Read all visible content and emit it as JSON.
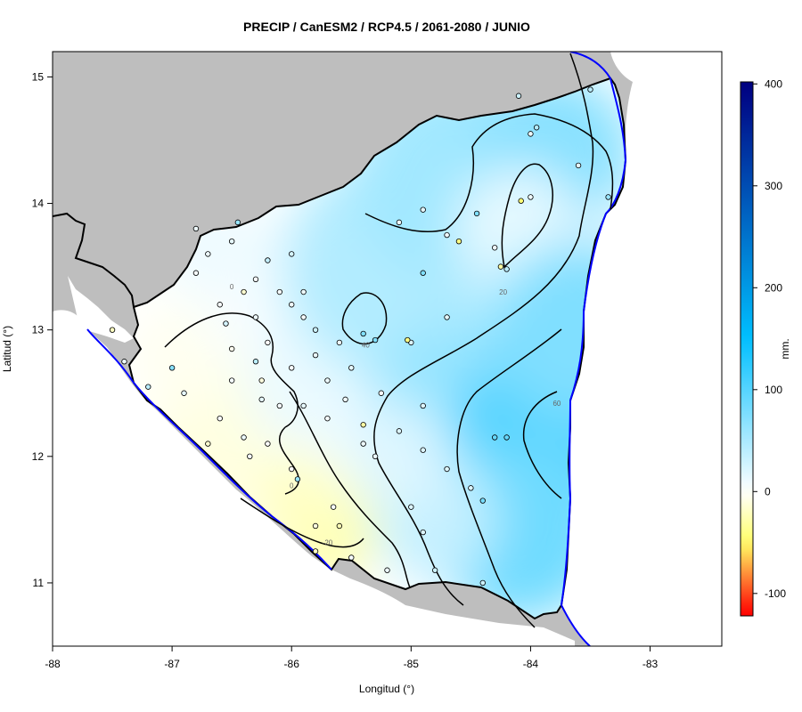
{
  "title": "PRECIP / CanESM2 / RCP4.5 / 2061-2080 / JUNIO",
  "x_axis": {
    "label": "Longitud (°)",
    "range": [
      -88,
      -82.4
    ],
    "ticks": [
      "-88",
      "-87",
      "-86",
      "-85",
      "-84",
      "-83"
    ],
    "tick_values": [
      -88,
      -87,
      -86,
      -85,
      -84,
      -83
    ]
  },
  "y_axis": {
    "label": "Latitud (°)",
    "range": [
      10.5,
      15.2
    ],
    "ticks": [
      "11",
      "12",
      "13",
      "14",
      "15"
    ],
    "tick_values": [
      11,
      12,
      13,
      14,
      15
    ]
  },
  "colorbar": {
    "label": "mm.",
    "ticks": [
      "400",
      "300",
      "200",
      "100",
      "0",
      "-100"
    ],
    "tick_values": [
      400,
      300,
      200,
      100,
      0,
      -100
    ],
    "range": [
      -122,
      402
    ],
    "colors": {
      "min": "#ff0000",
      "neg": "#ffff66",
      "zero": "#ffffff",
      "pos": "#00bfff",
      "max": "#000080"
    }
  },
  "contour_labels": [
    {
      "text": "20",
      "lon": -84.23,
      "lat": 13.28
    },
    {
      "text": "40",
      "lon": -85.38,
      "lat": 12.86
    },
    {
      "text": "60",
      "lon": -83.78,
      "lat": 12.4
    },
    {
      "text": "0",
      "lon": -86.5,
      "lat": 13.32
    },
    {
      "text": "0",
      "lon": -86.0,
      "lat": 11.75
    },
    {
      "text": "-20",
      "lon": -85.7,
      "lat": 11.3
    }
  ],
  "stations": [
    {
      "lon": -86.8,
      "lat": 13.8,
      "value": 10
    },
    {
      "lon": -86.5,
      "lat": 13.7,
      "value": 15
    },
    {
      "lon": -86.2,
      "lat": 13.55,
      "value": 35
    },
    {
      "lon": -86.0,
      "lat": 13.6,
      "value": 25
    },
    {
      "lon": -86.4,
      "lat": 13.3,
      "value": -15
    },
    {
      "lon": -86.6,
      "lat": 13.2,
      "value": 5
    },
    {
      "lon": -86.3,
      "lat": 13.1,
      "value": 10
    },
    {
      "lon": -86.0,
      "lat": 13.2,
      "value": 8
    },
    {
      "lon": -85.8,
      "lat": 13.0,
      "value": 30
    },
    {
      "lon": -86.2,
      "lat": 12.9,
      "value": 0
    },
    {
      "lon": -86.5,
      "lat": 12.85,
      "value": -5
    },
    {
      "lon": -86.3,
      "lat": 12.75,
      "value": 40
    },
    {
      "lon": -86.0,
      "lat": 12.7,
      "value": 5
    },
    {
      "lon": -85.7,
      "lat": 12.6,
      "value": 10
    },
    {
      "lon": -86.9,
      "lat": 12.5,
      "value": 15
    },
    {
      "lon": -87.2,
      "lat": 12.55,
      "value": 40
    },
    {
      "lon": -87.5,
      "lat": 13.0,
      "value": -20
    },
    {
      "lon": -87.4,
      "lat": 12.75,
      "value": 10
    },
    {
      "lon": -86.6,
      "lat": 12.3,
      "value": 2
    },
    {
      "lon": -86.7,
      "lat": 12.1,
      "value": -15
    },
    {
      "lon": -86.2,
      "lat": 12.1,
      "value": 0
    },
    {
      "lon": -86.0,
      "lat": 11.9,
      "value": 0
    },
    {
      "lon": -85.95,
      "lat": 11.82,
      "value": 60
    },
    {
      "lon": -85.8,
      "lat": 11.45,
      "value": -10
    },
    {
      "lon": -85.6,
      "lat": 11.45,
      "value": -25
    },
    {
      "lon": -85.65,
      "lat": 11.6,
      "value": 5
    },
    {
      "lon": -85.8,
      "lat": 11.25,
      "value": -20
    },
    {
      "lon": -85.5,
      "lat": 11.2,
      "value": 5
    },
    {
      "lon": -85.2,
      "lat": 11.1,
      "value": 10
    },
    {
      "lon": -85.4,
      "lat": 12.1,
      "value": 10
    },
    {
      "lon": -85.25,
      "lat": 12.5,
      "value": 5
    },
    {
      "lon": -85.1,
      "lat": 12.2,
      "value": 20
    },
    {
      "lon": -84.9,
      "lat": 12.05,
      "value": 20
    },
    {
      "lon": -84.7,
      "lat": 11.9,
      "value": 20
    },
    {
      "lon": -84.5,
      "lat": 11.75,
      "value": 20
    },
    {
      "lon": -84.4,
      "lat": 11.65,
      "value": 80
    },
    {
      "lon": -84.3,
      "lat": 12.15,
      "value": 90
    },
    {
      "lon": -84.2,
      "lat": 12.15,
      "value": 90
    },
    {
      "lon": -84.8,
      "lat": 11.1,
      "value": 30
    },
    {
      "lon": -84.4,
      "lat": 11.0,
      "value": 30
    },
    {
      "lon": -84.9,
      "lat": 11.4,
      "value": 20
    },
    {
      "lon": -85.0,
      "lat": 11.6,
      "value": 20
    },
    {
      "lon": -84.9,
      "lat": 12.4,
      "value": 20
    },
    {
      "lon": -85.0,
      "lat": 12.9,
      "value": 20
    },
    {
      "lon": -85.3,
      "lat": 12.92,
      "value": 75
    },
    {
      "lon": -85.4,
      "lat": 12.97,
      "value": 75
    },
    {
      "lon": -85.03,
      "lat": 12.92,
      "value": -40
    },
    {
      "lon": -85.4,
      "lat": 12.25,
      "value": -30
    },
    {
      "lon": -84.7,
      "lat": 13.1,
      "value": 15
    },
    {
      "lon": -84.9,
      "lat": 13.45,
      "value": 75
    },
    {
      "lon": -84.6,
      "lat": 13.7,
      "value": -40
    },
    {
      "lon": -84.7,
      "lat": 13.75,
      "value": 10
    },
    {
      "lon": -84.45,
      "lat": 13.92,
      "value": 75
    },
    {
      "lon": -84.3,
      "lat": 13.65,
      "value": 10
    },
    {
      "lon": -84.25,
      "lat": 13.5,
      "value": -30
    },
    {
      "lon": -84.2,
      "lat": 13.48,
      "value": 40
    },
    {
      "lon": -84.0,
      "lat": 14.05,
      "value": 8
    },
    {
      "lon": -84.08,
      "lat": 14.02,
      "value": -45
    },
    {
      "lon": -84.0,
      "lat": 14.55,
      "value": 10
    },
    {
      "lon": -83.95,
      "lat": 14.6,
      "value": 45
    },
    {
      "lon": -83.6,
      "lat": 14.3,
      "value": 15
    },
    {
      "lon": -83.35,
      "lat": 14.05,
      "value": 60
    },
    {
      "lon": -84.1,
      "lat": 14.85,
      "value": 30
    },
    {
      "lon": -83.5,
      "lat": 14.9,
      "value": 40
    },
    {
      "lon": -84.9,
      "lat": 13.95,
      "value": 15
    },
    {
      "lon": -85.1,
      "lat": 13.85,
      "value": 10
    },
    {
      "lon": -86.45,
      "lat": 13.85,
      "value": 60
    },
    {
      "lon": -86.8,
      "lat": 13.45,
      "value": 5
    },
    {
      "lon": -86.7,
      "lat": 13.6,
      "value": 10
    },
    {
      "lon": -87.0,
      "lat": 12.7,
      "value": 70
    },
    {
      "lon": -86.5,
      "lat": 12.6,
      "value": 5
    },
    {
      "lon": -86.1,
      "lat": 12.4,
      "value": 5
    },
    {
      "lon": -85.9,
      "lat": 12.4,
      "value": 15
    },
    {
      "lon": -85.7,
      "lat": 12.3,
      "value": 5
    },
    {
      "lon": -85.6,
      "lat": 12.9,
      "value": 10
    },
    {
      "lon": -85.5,
      "lat": 12.7,
      "value": 15
    },
    {
      "lon": -85.9,
      "lat": 13.1,
      "value": 5
    },
    {
      "lon": -86.1,
      "lat": 13.3,
      "value": 5
    },
    {
      "lon": -85.9,
      "lat": 13.3,
      "value": 10
    },
    {
      "lon": -86.3,
      "lat": 13.4,
      "value": 5
    },
    {
      "lon": -86.25,
      "lat": 12.6,
      "value": -10
    },
    {
      "lon": -86.35,
      "lat": 12.0,
      "value": 5
    },
    {
      "lon": -86.4,
      "lat": 12.15,
      "value": 10
    },
    {
      "lon": -85.8,
      "lat": 12.8,
      "value": 12
    },
    {
      "lon": -85.55,
      "lat": 12.45,
      "value": 8
    },
    {
      "lon": -85.3,
      "lat": 12.0,
      "value": 12
    },
    {
      "lon": -86.55,
      "lat": 13.05,
      "value": 25
    },
    {
      "lon": -86.25,
      "lat": 12.45,
      "value": 15
    }
  ]
}
